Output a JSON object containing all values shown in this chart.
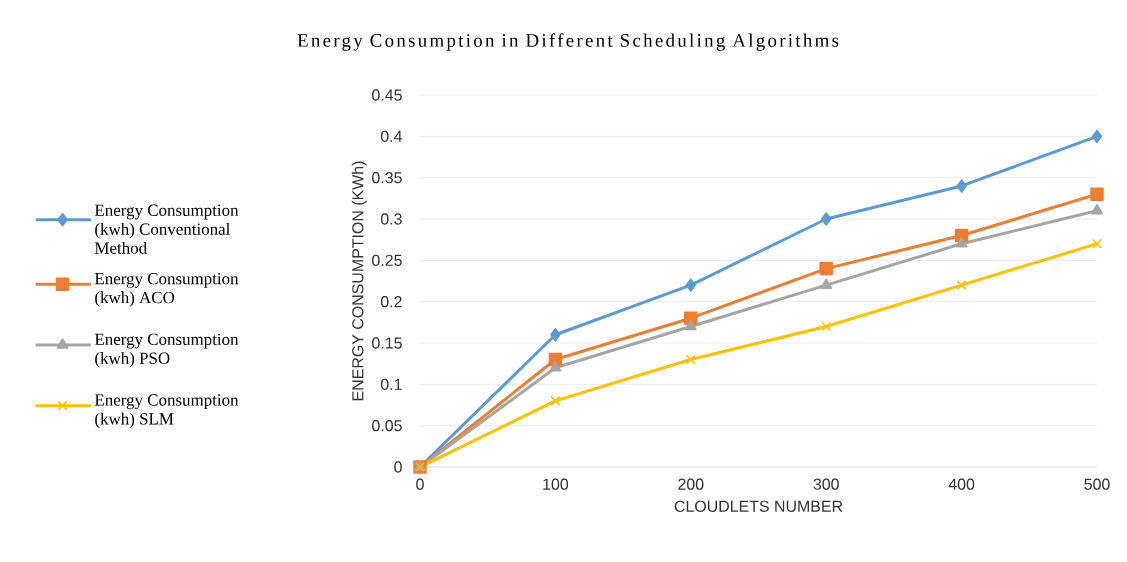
{
  "chart_data": {
    "type": "line",
    "title": "Energy Consumption in Different Scheduling Algorithms",
    "xlabel": "CLOUDLETS NUMBER",
    "ylabel": "ENERGY CONSUMPTION (KWh)",
    "x": [
      0,
      100,
      200,
      300,
      400,
      500
    ],
    "series": [
      {
        "name": "Energy Consumption (kwh) Conventional Method",
        "color": "#5b9bd5",
        "marker": "diamond",
        "values": [
          0,
          0.16,
          0.22,
          0.3,
          0.34,
          0.4
        ]
      },
      {
        "name": "Energy Consumption (kwh) ACO",
        "color": "#ed7d31",
        "marker": "square",
        "values": [
          0,
          0.13,
          0.18,
          0.24,
          0.28,
          0.33
        ]
      },
      {
        "name": "Energy Consumption (kwh) PSO",
        "color": "#a5a5a5",
        "marker": "triangle",
        "values": [
          0,
          0.12,
          0.17,
          0.22,
          0.27,
          0.31
        ]
      },
      {
        "name": "Energy Consumption (kwh) SLM",
        "color": "#ffc000",
        "marker": "cross",
        "values": [
          0,
          0.08,
          0.13,
          0.17,
          0.22,
          0.27
        ]
      }
    ],
    "xlim": [
      0,
      500
    ],
    "xticks": [
      0,
      100,
      200,
      300,
      400,
      500
    ],
    "ylim": [
      0,
      0.45
    ],
    "yticks": [
      0,
      0.05,
      0.1,
      0.15,
      0.2,
      0.25,
      0.3,
      0.35,
      0.4,
      0.45
    ],
    "grid": "y",
    "legend": "left",
    "line_style": "solid"
  }
}
